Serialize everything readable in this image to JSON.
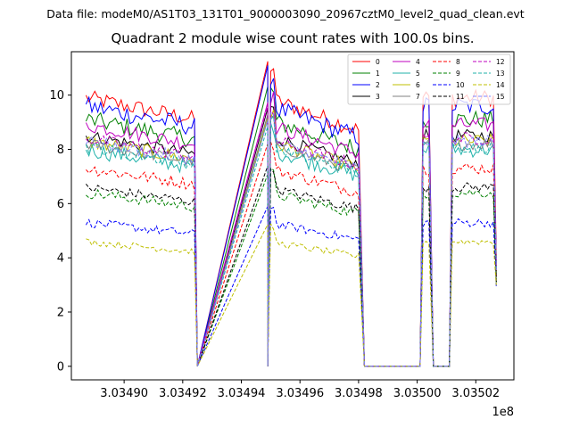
{
  "figure": {
    "suptitle": "Data file: modeM0/AS1T03_131T01_9000003090_20967cztM0_level2_quad_clean.evt"
  },
  "chart_data": {
    "type": "line",
    "title": "Quadrant 2 module wise count rates with 100.0s bins.",
    "xlabel": "",
    "ylabel": "",
    "offset_label": "1e8",
    "xlim": [
      303488200,
      303503300
    ],
    "ylim": [
      -0.5,
      11.6
    ],
    "x_ticks": [
      303490000,
      303492000,
      303494000,
      303496000,
      303498000,
      303500000,
      303502000
    ],
    "x_tick_labels": [
      "3.03490",
      "3.03492",
      "3.03494",
      "3.03496",
      "3.03498",
      "3.03500",
      "3.03502"
    ],
    "y_ticks": [
      0,
      2,
      4,
      6,
      8,
      10
    ],
    "y_tick_labels": [
      "0",
      "2",
      "4",
      "6",
      "8",
      "10"
    ],
    "grid": false,
    "legend_position": "top-right",
    "segments": [
      {
        "start": 303488700,
        "end": 303492400,
        "gap_after": 303492500
      },
      {
        "start": 303494900,
        "end": 303498000,
        "gap_after": 303498200
      },
      {
        "start": 303500200,
        "end": 303500400,
        "gap_after": 303500550
      },
      {
        "start": 303501200,
        "end": 303502700,
        "gap_after": null
      }
    ],
    "zero_stretches": [
      [
        303492500,
        303494900
      ],
      [
        303498200,
        303500100
      ],
      [
        303500550,
        303501100
      ]
    ],
    "series": [
      {
        "name": "0",
        "color": "#ff0000",
        "dashed": false,
        "level": 9.9,
        "noise": 0.25,
        "last": 4.0
      },
      {
        "name": "1",
        "color": "#008000",
        "dashed": false,
        "level": 9.1,
        "noise": 0.3,
        "last": 3.8
      },
      {
        "name": "2",
        "color": "#0000ff",
        "dashed": false,
        "level": 9.6,
        "noise": 0.3,
        "last": 3.6
      },
      {
        "name": "3",
        "color": "#000000",
        "dashed": false,
        "level": 8.5,
        "noise": 0.22,
        "last": 3.5
      },
      {
        "name": "4",
        "color": "#bf00bf",
        "dashed": false,
        "level": 8.9,
        "noise": 0.25,
        "last": 3.7
      },
      {
        "name": "5",
        "color": "#20b2aa",
        "dashed": false,
        "level": 8.0,
        "noise": 0.3,
        "last": 3.4
      },
      {
        "name": "6",
        "color": "#bfbf00",
        "dashed": false,
        "level": 8.3,
        "noise": 0.25,
        "last": 3.5
      },
      {
        "name": "7",
        "color": "#808080",
        "dashed": false,
        "level": 8.2,
        "noise": 0.22,
        "last": 3.4
      },
      {
        "name": "8",
        "color": "#ff0000",
        "dashed": true,
        "level": 7.3,
        "noise": 0.25,
        "last": 3.3
      },
      {
        "name": "9",
        "color": "#008000",
        "dashed": true,
        "level": 6.4,
        "noise": 0.25,
        "last": 3.1
      },
      {
        "name": "10",
        "color": "#0000ff",
        "dashed": true,
        "level": 5.3,
        "noise": 0.25,
        "last": 2.9
      },
      {
        "name": "11",
        "color": "#000000",
        "dashed": true,
        "level": 6.6,
        "noise": 0.22,
        "last": 3.1
      },
      {
        "name": "12",
        "color": "#bf00bf",
        "dashed": true,
        "level": 8.4,
        "noise": 0.22,
        "last": 3.6
      },
      {
        "name": "13",
        "color": "#20b2aa",
        "dashed": true,
        "level": 8.1,
        "noise": 0.22,
        "last": 3.5
      },
      {
        "name": "14",
        "color": "#bfbf00",
        "dashed": true,
        "level": 4.6,
        "noise": 0.22,
        "last": 3.0
      },
      {
        "name": "15",
        "color": "#8080ff",
        "dashed": true,
        "level": 8.3,
        "noise": 0.22,
        "last": 3.5
      }
    ]
  }
}
